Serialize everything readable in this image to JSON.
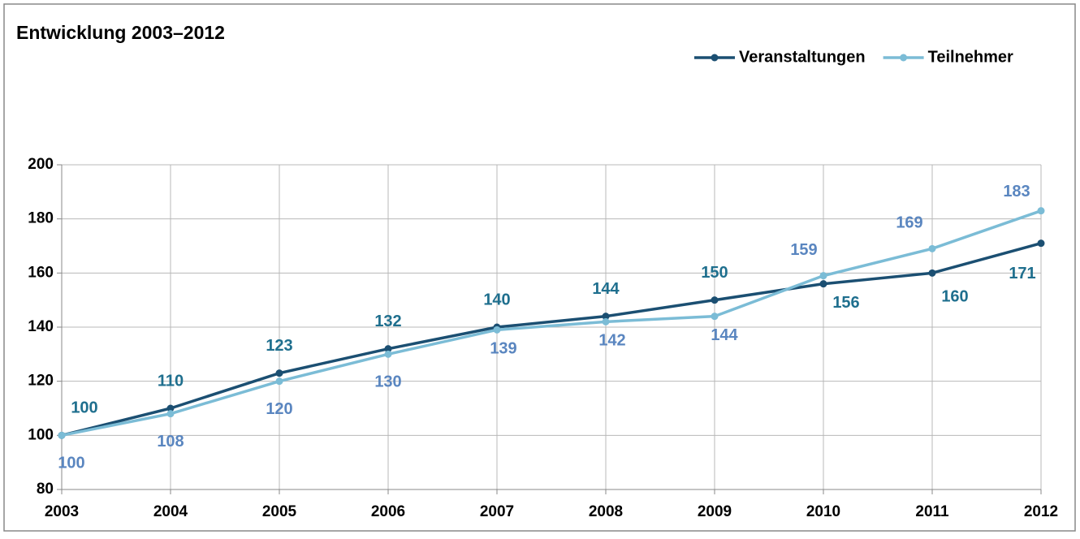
{
  "chart_data": {
    "type": "line",
    "title": "Entwicklung 2003–2012",
    "categories": [
      "2003",
      "2004",
      "2005",
      "2006",
      "2007",
      "2008",
      "2009",
      "2010",
      "2011",
      "2012"
    ],
    "series": [
      {
        "name": "Veranstaltungen",
        "color": "#1b4f72",
        "label_color": "#1f6f8e",
        "values": [
          100,
          110,
          123,
          132,
          140,
          144,
          150,
          156,
          160,
          171
        ]
      },
      {
        "name": "Teilnehmer",
        "color": "#7bbcd6",
        "label_color": "#5a86c0",
        "values": [
          100,
          108,
          120,
          130,
          139,
          142,
          144,
          159,
          169,
          183
        ]
      }
    ],
    "ylim": [
      80,
      200
    ],
    "yticks": [
      80,
      100,
      120,
      140,
      160,
      180,
      200
    ],
    "grid": true,
    "legend": "top-right"
  }
}
